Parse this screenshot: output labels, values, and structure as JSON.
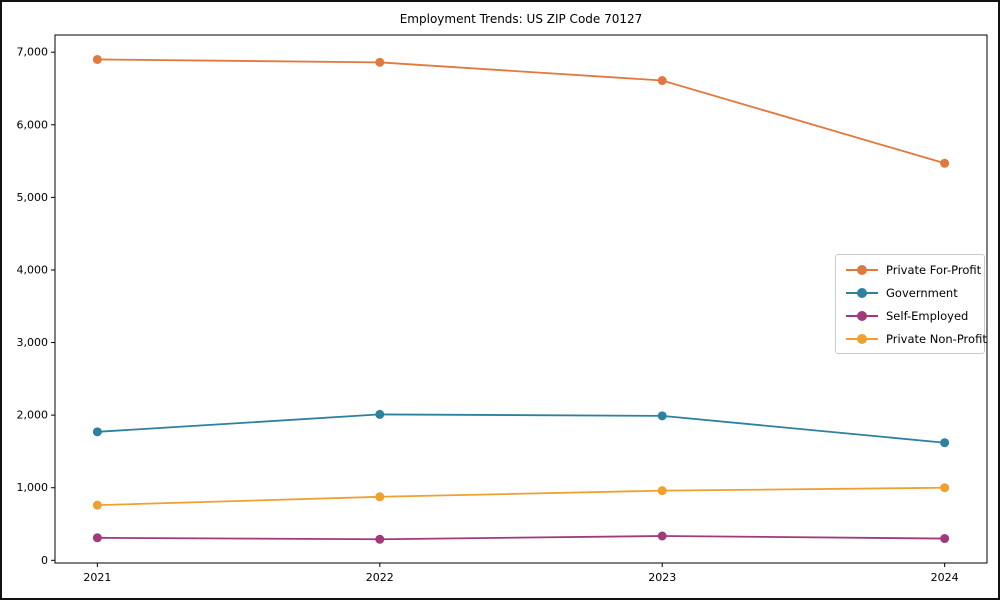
{
  "figure": {
    "background": "#ffffff",
    "frame_color": "#111111"
  },
  "chart_data": {
    "type": "line",
    "title": "Employment Trends: US ZIP Code 70127",
    "xlabel": "",
    "ylabel": "",
    "x": [
      2021,
      2022,
      2023,
      2024
    ],
    "x_tick_labels": [
      "2021",
      "2022",
      "2023",
      "2024"
    ],
    "y_ticks": [
      0,
      1000,
      2000,
      3000,
      4000,
      5000,
      6000,
      7000
    ],
    "y_tick_labels": [
      "0",
      "1,000",
      "2,000",
      "3,000",
      "4,000",
      "5,000",
      "6,000",
      "7,000"
    ],
    "xlim": [
      2020.85,
      2024.15
    ],
    "ylim": [
      -37,
      7237
    ],
    "grid": false,
    "legend_position": "center right",
    "axis_color": "#000000",
    "marker": "circle",
    "series": [
      {
        "name": "Private For-Profit",
        "color": "#e1793e",
        "values": [
          6900,
          6860,
          6610,
          5470
        ]
      },
      {
        "name": "Government",
        "color": "#2d809e",
        "values": [
          1770,
          2010,
          1990,
          1620
        ]
      },
      {
        "name": "Self-Employed",
        "color": "#a13a7a",
        "values": [
          310,
          290,
          335,
          300
        ]
      },
      {
        "name": "Private Non-Profit",
        "color": "#efa02f",
        "values": [
          760,
          875,
          960,
          1000
        ]
      }
    ]
  }
}
